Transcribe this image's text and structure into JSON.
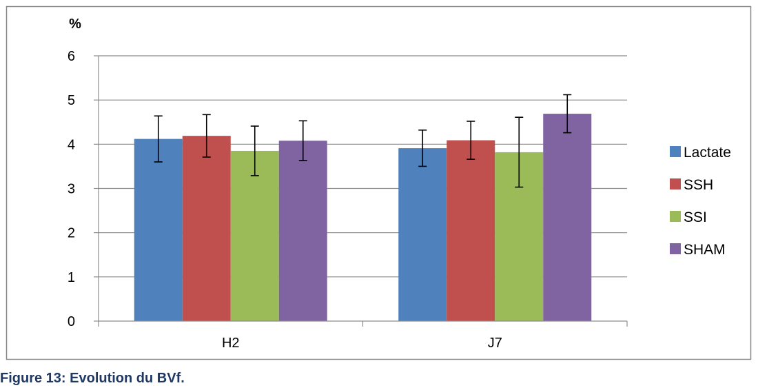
{
  "caption": "Figure 13: Evolution du BVf.",
  "chart_data": {
    "type": "bar",
    "title": "",
    "xlabel": "",
    "ylabel": "%",
    "ylim": [
      0,
      6
    ],
    "yticks": [
      0,
      1,
      2,
      3,
      4,
      5,
      6
    ],
    "grid": true,
    "legend_position": "right",
    "categories": [
      "H2",
      "J7"
    ],
    "series": [
      {
        "name": "Lactate",
        "color": "#4f81bd",
        "values": [
          4.12,
          3.91
        ],
        "errors": [
          0.52,
          0.41
        ]
      },
      {
        "name": "SSH",
        "color": "#c0504d",
        "values": [
          4.19,
          4.09
        ],
        "errors": [
          0.48,
          0.43
        ]
      },
      {
        "name": "SSI",
        "color": "#9bbb59",
        "values": [
          3.85,
          3.82
        ],
        "errors": [
          0.56,
          0.79
        ]
      },
      {
        "name": "SHAM",
        "color": "#8064a2",
        "values": [
          4.08,
          4.69
        ],
        "errors": [
          0.45,
          0.43
        ]
      }
    ]
  }
}
